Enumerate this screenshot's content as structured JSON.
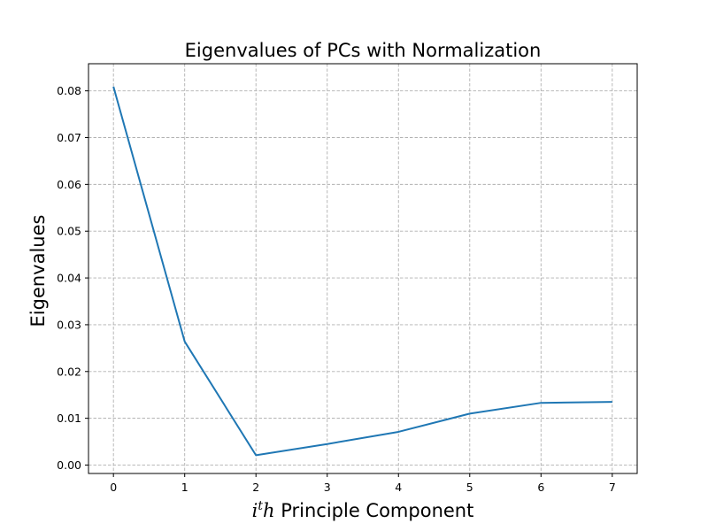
{
  "chart_data": {
    "type": "line",
    "title": "Eigenvalues of PCs with Normalization",
    "xlabel": {
      "var": "i",
      "sup": "t",
      "var2": "h",
      "text": " Principle Component"
    },
    "ylabel": "Eigenvalues",
    "x": [
      0,
      1,
      2,
      3,
      4,
      5,
      6,
      7
    ],
    "series": [
      {
        "values": [
          0.0809,
          0.0264,
          0.0021,
          0.0045,
          0.0071,
          0.011,
          0.0133,
          0.0135
        ],
        "color": "#1f77b4"
      }
    ],
    "xlim": [
      -0.35,
      7.35
    ],
    "ylim": [
      -0.0018,
      0.0858
    ],
    "xticks": [
      0,
      1,
      2,
      3,
      4,
      5,
      6,
      7
    ],
    "yticks": [
      0.0,
      0.01,
      0.02,
      0.03,
      0.04,
      0.05,
      0.06,
      0.07,
      0.08
    ],
    "ytick_labels": [
      "0.00",
      "0.01",
      "0.02",
      "0.03",
      "0.04",
      "0.05",
      "0.06",
      "0.07",
      "0.08"
    ],
    "grid": true,
    "grid_style": "dashed",
    "grid_color": "#b0b0b0"
  }
}
